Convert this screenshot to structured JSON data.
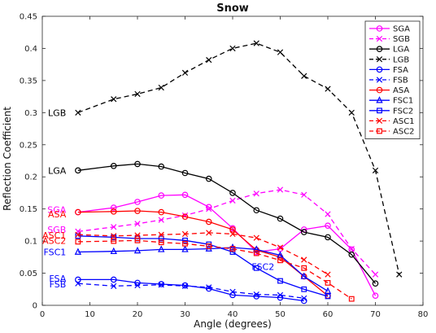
{
  "chart_data": {
    "type": "line",
    "title": "Snow",
    "xlabel": "Angle (degrees)",
    "ylabel": "Reflection Coefficient",
    "xlim": [
      0,
      80
    ],
    "ylim": [
      0,
      0.45
    ],
    "x_ticks": [
      0,
      10,
      20,
      30,
      40,
      50,
      60,
      70,
      80
    ],
    "y_ticks": [
      0,
      0.05,
      0.1,
      0.15,
      0.2,
      0.25,
      0.3,
      0.35,
      0.4,
      0.45
    ],
    "x_tick_labels": [
      "0",
      "10",
      "20",
      "30",
      "40",
      "50",
      "60",
      "70",
      "80"
    ],
    "y_tick_labels": [
      "0",
      "0.05",
      "0.1",
      "0.15",
      "0.2",
      "0.25",
      "0.3",
      "0.35",
      "0.4",
      "0.45"
    ],
    "grid": false,
    "legend_position": "top-right",
    "series": [
      {
        "name": "SGA",
        "color": "#ff00ff",
        "dash": "solid",
        "marker": "circle",
        "x": [
          7.5,
          15,
          20,
          25,
          30,
          35,
          40,
          45,
          50,
          55,
          60,
          65,
          70
        ],
        "y": [
          0.145,
          0.152,
          0.161,
          0.171,
          0.172,
          0.153,
          0.12,
          0.083,
          0.088,
          0.118,
          0.124,
          0.087,
          0.015
        ]
      },
      {
        "name": "SGB",
        "color": "#ff00ff",
        "dash": "dashed",
        "marker": "x",
        "x": [
          7.5,
          15,
          20,
          25,
          30,
          35,
          40,
          45,
          50,
          55,
          60,
          65,
          70
        ],
        "y": [
          0.115,
          0.122,
          0.127,
          0.133,
          0.14,
          0.15,
          0.163,
          0.174,
          0.18,
          0.172,
          0.142,
          0.088,
          0.048
        ]
      },
      {
        "name": "LGA",
        "color": "#000000",
        "dash": "solid",
        "marker": "circle",
        "x": [
          7.5,
          15,
          20,
          25,
          30,
          35,
          40,
          45,
          50,
          55,
          60,
          65,
          70
        ],
        "y": [
          0.21,
          0.217,
          0.22,
          0.216,
          0.206,
          0.197,
          0.175,
          0.148,
          0.135,
          0.114,
          0.106,
          0.079,
          0.034
        ]
      },
      {
        "name": "LGB",
        "color": "#000000",
        "dash": "dashed",
        "marker": "x",
        "x": [
          7.5,
          15,
          20,
          25,
          30,
          35,
          40,
          45,
          50,
          55,
          60,
          65,
          70,
          75
        ],
        "y": [
          0.3,
          0.321,
          0.329,
          0.339,
          0.362,
          0.382,
          0.4,
          0.408,
          0.394,
          0.357,
          0.337,
          0.3,
          0.21,
          0.048
        ]
      },
      {
        "name": "FSA",
        "color": "#0000ff",
        "dash": "solid",
        "marker": "circle",
        "x": [
          7.5,
          15,
          20,
          25,
          30,
          35,
          40,
          45,
          50,
          55
        ],
        "y": [
          0.04,
          0.04,
          0.035,
          0.033,
          0.031,
          0.026,
          0.016,
          0.014,
          0.012,
          0.007
        ]
      },
      {
        "name": "FSB",
        "color": "#0000ff",
        "dash": "dashed",
        "marker": "x",
        "x": [
          7.5,
          15,
          20,
          25,
          30,
          35,
          40,
          45,
          50,
          55
        ],
        "y": [
          0.034,
          0.03,
          0.031,
          0.032,
          0.03,
          0.028,
          0.021,
          0.017,
          0.016,
          0.011
        ]
      },
      {
        "name": "ASA",
        "color": "#ff0000",
        "dash": "solid",
        "marker": "circle",
        "x": [
          7.5,
          15,
          20,
          25,
          30,
          35,
          40,
          45,
          50,
          55,
          60
        ],
        "y": [
          0.145,
          0.146,
          0.147,
          0.145,
          0.138,
          0.13,
          0.118,
          0.086,
          0.075,
          0.045,
          0.015
        ]
      },
      {
        "name": "FSC1",
        "color": "#0000ff",
        "dash": "solid",
        "marker": "triangle",
        "x": [
          7.5,
          15,
          20,
          25,
          30,
          35,
          40,
          45,
          50,
          55,
          60
        ],
        "y": [
          0.083,
          0.084,
          0.085,
          0.087,
          0.087,
          0.088,
          0.09,
          0.087,
          0.078,
          0.045,
          0.022
        ]
      },
      {
        "name": "FSC2",
        "color": "#0000ff",
        "dash": "solid",
        "marker": "square",
        "x": [
          7.5,
          15,
          20,
          25,
          30,
          35,
          40,
          45,
          50,
          55,
          60
        ],
        "y": [
          0.108,
          0.106,
          0.104,
          0.104,
          0.101,
          0.095,
          0.083,
          0.058,
          0.038,
          0.025,
          0.014
        ]
      },
      {
        "name": "ASC1",
        "color": "#ff0000",
        "dash": "dashed",
        "marker": "x",
        "x": [
          7.5,
          15,
          20,
          25,
          30,
          35,
          40,
          45,
          50,
          55,
          60
        ],
        "y": [
          0.11,
          0.108,
          0.109,
          0.11,
          0.111,
          0.113,
          0.111,
          0.105,
          0.09,
          0.071,
          0.048
        ]
      },
      {
        "name": "ASC2",
        "color": "#ff0000",
        "dash": "dashed",
        "marker": "square",
        "x": [
          7.5,
          15,
          20,
          25,
          30,
          35,
          40,
          45,
          50,
          55,
          60,
          65
        ],
        "y": [
          0.099,
          0.1,
          0.101,
          0.098,
          0.096,
          0.092,
          0.088,
          0.081,
          0.07,
          0.058,
          0.035,
          0.01
        ]
      }
    ],
    "annotations": [
      {
        "text": "LGB",
        "color": "#000000",
        "x": 5,
        "y": 0.3
      },
      {
        "text": "LGA",
        "color": "#000000",
        "x": 5,
        "y": 0.21
      },
      {
        "text": "SGA",
        "color": "#ff00ff",
        "x": 5,
        "y": 0.149
      },
      {
        "text": "ASA",
        "color": "#ff0000",
        "x": 5,
        "y": 0.142
      },
      {
        "text": "SGB",
        "color": "#ff00ff",
        "x": 5,
        "y": 0.118
      },
      {
        "text": "ASC1",
        "color": "#ff0000",
        "x": 5,
        "y": 0.109
      },
      {
        "text": "ASC2",
        "color": "#ff0000",
        "x": 5,
        "y": 0.101
      },
      {
        "text": "FSC1",
        "color": "#0000ff",
        "x": 5,
        "y": 0.083
      },
      {
        "text": "FSC2",
        "color": "#0000ff",
        "x": 44,
        "y": 0.06
      },
      {
        "text": "FSA",
        "color": "#0000ff",
        "x": 5,
        "y": 0.042
      },
      {
        "text": "FSB",
        "color": "#0000ff",
        "x": 5,
        "y": 0.033
      }
    ]
  }
}
